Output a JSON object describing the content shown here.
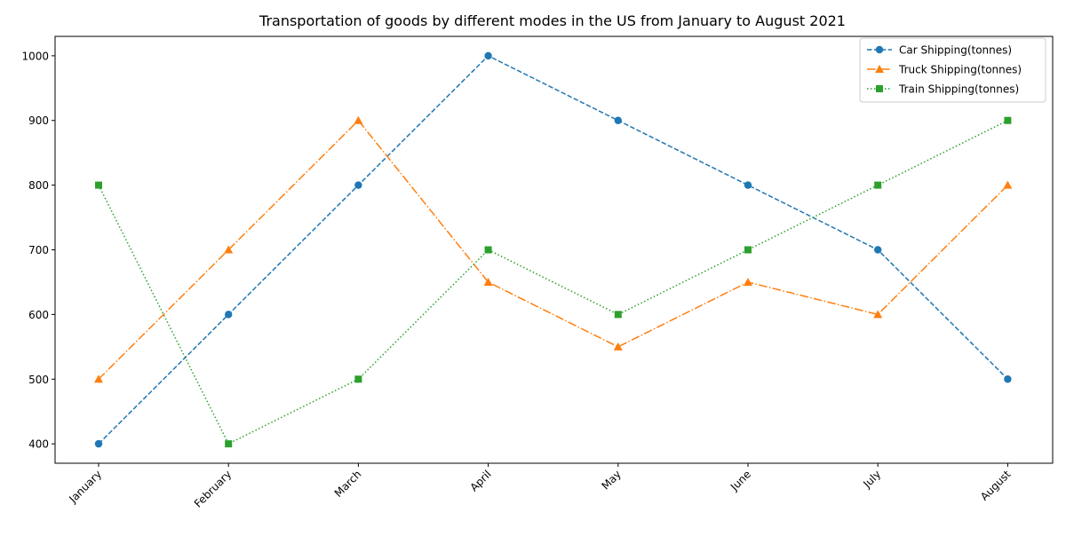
{
  "chart_data": {
    "type": "line",
    "title": "Transportation of goods by different modes in the US from January to August 2021",
    "xlabel": "",
    "ylabel": "",
    "categories": [
      "January",
      "February",
      "March",
      "April",
      "May",
      "June",
      "July",
      "August"
    ],
    "ylim": [
      370,
      1030
    ],
    "yticks": [
      400,
      500,
      600,
      700,
      800,
      900,
      1000
    ],
    "grid": false,
    "legend_position": "top-right",
    "series": [
      {
        "name": "Car Shipping(tonnes)",
        "values": [
          400,
          600,
          800,
          1000,
          900,
          800,
          700,
          500
        ],
        "color": "#1f77b4",
        "marker": "circle",
        "line_style": "dashed"
      },
      {
        "name": "Truck Shipping(tonnes)",
        "values": [
          500,
          700,
          900,
          650,
          550,
          650,
          600,
          800
        ],
        "color": "#ff7f0e",
        "marker": "triangle",
        "line_style": "dashdot"
      },
      {
        "name": "Train Shipping(tonnes)",
        "values": [
          800,
          400,
          500,
          700,
          600,
          700,
          800,
          900
        ],
        "color": "#2ca02c",
        "marker": "square",
        "line_style": "dotted"
      }
    ]
  }
}
